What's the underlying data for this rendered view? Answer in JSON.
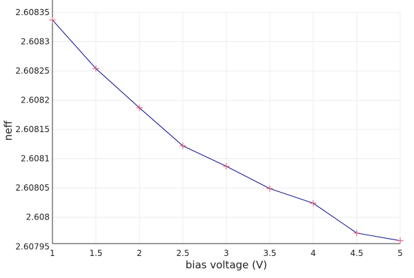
{
  "chart_data": {
    "type": "line",
    "title": "",
    "xlabel": "bias voltage (V)",
    "ylabel": "neff",
    "xlim": [
      1,
      5
    ],
    "ylim": [
      2.607955,
      2.60835
    ],
    "x_ticks": [
      1,
      1.5,
      2,
      2.5,
      3,
      3.5,
      4,
      4.5,
      5
    ],
    "x_tick_labels": [
      "1",
      "1.5",
      "2",
      "2.5",
      "3",
      "3.5",
      "4",
      "4.5",
      "5"
    ],
    "y_ticks": [
      2.60795,
      2.608,
      2.60805,
      2.6081,
      2.60815,
      2.6082,
      2.60825,
      2.6083,
      2.60835
    ],
    "y_tick_labels": [
      "2.60795",
      "2.608",
      "2.60805",
      "2.6081",
      "2.60815",
      "2.6082",
      "2.60825",
      "2.6083",
      "2.60835"
    ],
    "grid": true,
    "legend": "none",
    "series": [
      {
        "x": [
          1,
          1.5,
          2,
          2.5,
          3,
          3.5,
          4,
          4.5,
          5
        ],
        "y": [
          2.608337,
          2.608254,
          2.608187,
          2.608122,
          2.608087,
          2.608049,
          2.608024,
          2.607973,
          2.60796
        ],
        "line_color": "#00008b",
        "marker": "+",
        "marker_color": "#e06080"
      }
    ]
  }
}
